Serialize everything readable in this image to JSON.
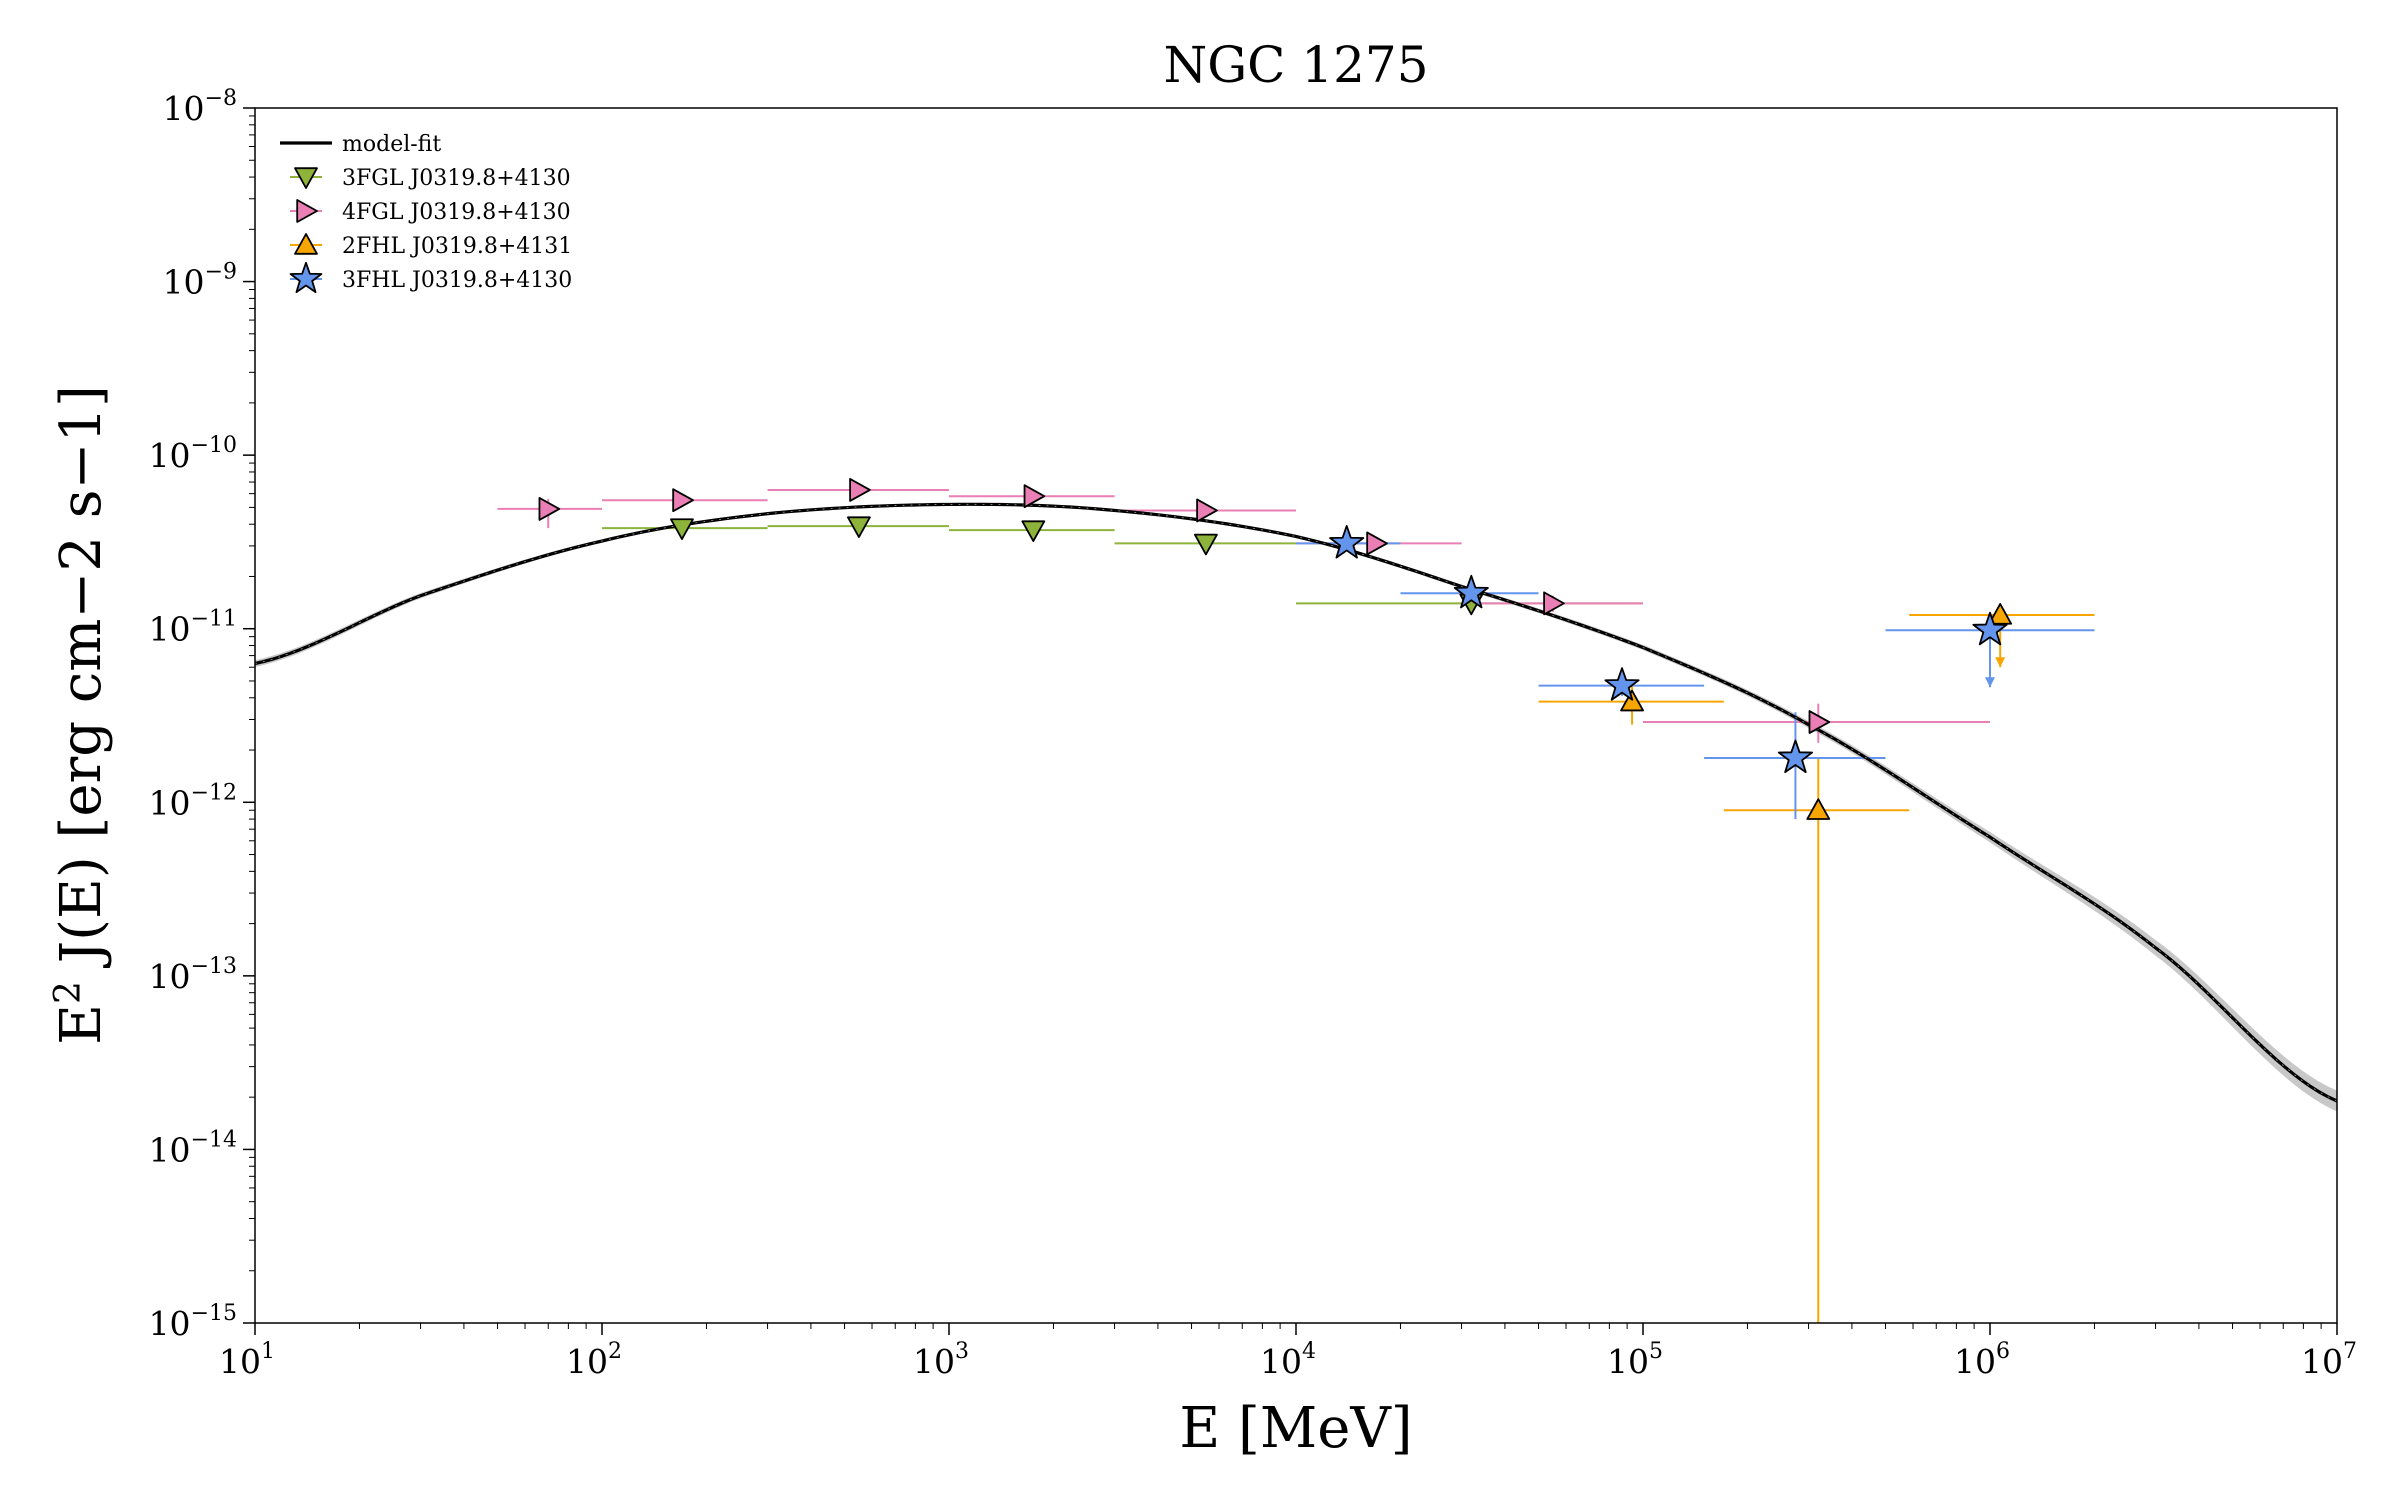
{
  "chart_data": {
    "type": "scatter",
    "title": "NGC 1275",
    "xlabel": "E [MeV]",
    "ylabel": "E2 J(E) [erg cm−2 s−1]",
    "xscale": "log",
    "yscale": "log",
    "xlim": [
      10,
      10000000
    ],
    "ylim": [
      1e-15,
      1e-08
    ],
    "x_ticks": [
      {
        "base": "10",
        "exp": "1",
        "value": 10
      },
      {
        "base": "10",
        "exp": "2",
        "value": 100
      },
      {
        "base": "10",
        "exp": "3",
        "value": 1000
      },
      {
        "base": "10",
        "exp": "4",
        "value": 10000
      },
      {
        "base": "10",
        "exp": "5",
        "value": 100000
      },
      {
        "base": "10",
        "exp": "6",
        "value": 1000000
      },
      {
        "base": "10",
        "exp": "7",
        "value": 10000000
      }
    ],
    "y_ticks": [
      {
        "base": "10",
        "exp": "−15",
        "value": 1e-15
      },
      {
        "base": "10",
        "exp": "−14",
        "value": 1e-14
      },
      {
        "base": "10",
        "exp": "−13",
        "value": 1e-13
      },
      {
        "base": "10",
        "exp": "−12",
        "value": 1e-12
      },
      {
        "base": "10",
        "exp": "−11",
        "value": 1e-11
      },
      {
        "base": "10",
        "exp": "−10",
        "value": 1e-10
      },
      {
        "base": "10",
        "exp": "−9",
        "value": 1e-09
      },
      {
        "base": "10",
        "exp": "−8",
        "value": 1e-08
      }
    ],
    "legend_position": "top-left",
    "grid": false,
    "model": {
      "name": "model-fit",
      "color": "#000000",
      "band_color": "#c8c8c8",
      "x": [
        10,
        30,
        100,
        300,
        1000,
        3000,
        10000,
        30000,
        100000,
        300000,
        1000000,
        3000000,
        10000000
      ],
      "y": [
        6.3e-12,
        1.55e-11,
        3.2e-11,
        4.6e-11,
        5.2e-11,
        4.8e-11,
        3.4e-11,
        1.75e-11,
        7.8e-12,
        2.8e-12,
        6.3e-13,
        1.45e-13,
        1.9e-14
      ],
      "band_halfwidth_dex": [
        0.02,
        0.015,
        0.01,
        0.008,
        0.006,
        0.008,
        0.01,
        0.012,
        0.015,
        0.02,
        0.03,
        0.045,
        0.06
      ]
    },
    "series": [
      {
        "name": "3FGL J0319.8+4130",
        "marker": "triangle-down",
        "color": "#8db33a",
        "points": [
          {
            "x": 170,
            "y": 3.8e-11,
            "xlo": 100,
            "xhi": 300,
            "ylo": 3.5e-11,
            "yhi": 4.1e-11
          },
          {
            "x": 550,
            "y": 3.9e-11,
            "xlo": 300,
            "xhi": 1000,
            "ylo": 3.7e-11,
            "yhi": 4.1e-11
          },
          {
            "x": 1750,
            "y": 3.7e-11,
            "xlo": 1000,
            "xhi": 3000,
            "ylo": 3.5e-11,
            "yhi": 3.9e-11
          },
          {
            "x": 5500,
            "y": 3.1e-11,
            "xlo": 3000,
            "xhi": 10000,
            "ylo": 2.9e-11,
            "yhi": 3.3e-11
          },
          {
            "x": 32000,
            "y": 1.4e-11,
            "xlo": 10000,
            "xhi": 100000,
            "ylo": 1.3e-11,
            "yhi": 1.5e-11
          }
        ]
      },
      {
        "name": "4FGL J0319.8+4130",
        "marker": "triangle-right",
        "color": "#e97fb4",
        "points": [
          {
            "x": 70,
            "y": 4.9e-11,
            "xlo": 50,
            "xhi": 100,
            "ylo": 3.8e-11,
            "yhi": 5.6e-11
          },
          {
            "x": 170,
            "y": 5.5e-11,
            "xlo": 100,
            "xhi": 300,
            "ylo": 5.1e-11,
            "yhi": 5.9e-11
          },
          {
            "x": 550,
            "y": 6.3e-11,
            "xlo": 300,
            "xhi": 1000,
            "ylo": 6e-11,
            "yhi": 6.6e-11
          },
          {
            "x": 1750,
            "y": 5.8e-11,
            "xlo": 1000,
            "xhi": 3000,
            "ylo": 5.5e-11,
            "yhi": 6.1e-11
          },
          {
            "x": 5500,
            "y": 4.8e-11,
            "xlo": 3000,
            "xhi": 10000,
            "ylo": 4.5e-11,
            "yhi": 5.1e-11
          },
          {
            "x": 17000,
            "y": 3.1e-11,
            "xlo": 10000,
            "xhi": 30000,
            "ylo": 2.9e-11,
            "yhi": 3.3e-11
          },
          {
            "x": 55000,
            "y": 1.4e-11,
            "xlo": 30000,
            "xhi": 100000,
            "ylo": 1.25e-11,
            "yhi": 1.55e-11
          },
          {
            "x": 320000,
            "y": 2.9e-12,
            "xlo": 100000,
            "xhi": 1000000,
            "ylo": 2.2e-12,
            "yhi": 3.7e-12
          }
        ]
      },
      {
        "name": "2FHL J0319.8+4131",
        "marker": "triangle-up",
        "color": "#f7a600",
        "points": [
          {
            "x": 93000,
            "y": 3.8e-12,
            "xlo": 50000,
            "xhi": 171000,
            "ylo": 2.8e-12,
            "yhi": 4.8e-12
          },
          {
            "x": 320000,
            "y": 9e-13,
            "xlo": 171000,
            "xhi": 585000,
            "ylo": 1e-15,
            "yhi": 1.8e-12
          },
          {
            "x": 1070000,
            "y": 1.2e-11,
            "xlo": 585000,
            "xhi": 2000000,
            "uplim": true,
            "arrow_to": 6e-12
          }
        ]
      },
      {
        "name": "3FHL J0319.8+4130",
        "marker": "star",
        "color": "#6495ed",
        "points": [
          {
            "x": 14000,
            "y": 3.1e-11,
            "xlo": 10000,
            "xhi": 20000,
            "ylo": 2.8e-11,
            "yhi": 3.4e-11
          },
          {
            "x": 32000,
            "y": 1.6e-11,
            "xlo": 20000,
            "xhi": 50000,
            "ylo": 1.45e-11,
            "yhi": 1.75e-11
          },
          {
            "x": 87000,
            "y": 4.7e-12,
            "xlo": 50000,
            "xhi": 150000,
            "ylo": 4.1e-12,
            "yhi": 5.3e-12
          },
          {
            "x": 275000,
            "y": 1.8e-12,
            "xlo": 150000,
            "xhi": 500000,
            "ylo": 8e-13,
            "yhi": 3.3e-12
          },
          {
            "x": 1000000,
            "y": 9.8e-12,
            "xlo": 500000,
            "xhi": 2000000,
            "uplim": true,
            "arrow_to": 4.6e-12
          }
        ]
      }
    ]
  }
}
